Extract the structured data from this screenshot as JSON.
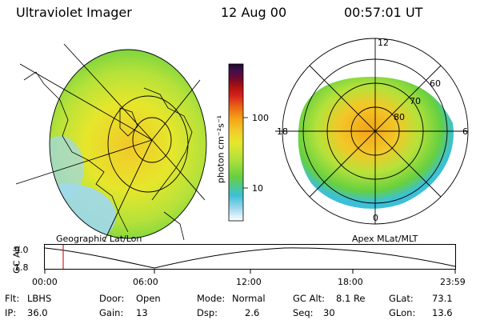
{
  "header": {
    "title": "Ultraviolet Imager",
    "date": "12 Aug 00",
    "time": "00:57:01 UT"
  },
  "colorbar": {
    "unit_label": "photon cm⁻²s⁻¹",
    "tick_100": "100",
    "tick_10": "10",
    "colors": [
      "#ffffff",
      "#9fd8ee",
      "#3cc0d8",
      "#66d040",
      "#b6e23a",
      "#e6e62c",
      "#f2c828",
      "#f4a418",
      "#ec6a14",
      "#d4201c",
      "#a81010",
      "#6c0830",
      "#40104a",
      "#1a0a28"
    ]
  },
  "left_map": {
    "label": "Geographic Lat/Lon"
  },
  "right_map": {
    "label": "Apex MLat/MLT",
    "mlt_labels": {
      "top": "12",
      "left": "18",
      "right": "6",
      "bottom": "0"
    },
    "lat_labels": [
      "60",
      "70",
      "80"
    ]
  },
  "altitude_plot": {
    "axis_label": "GC Alt",
    "y_ticks": [
      "9.0",
      "1.8"
    ],
    "x_ticks": [
      "00:00",
      "06:00",
      "12:00",
      "18:00",
      "23:59"
    ],
    "marker_color": "#d62020"
  },
  "info": {
    "flt_label": "Flt:",
    "flt_value": "LBHS",
    "ip_label": "IP:",
    "ip_value": "36.0",
    "door_label": "Door:",
    "door_value": "Open",
    "gain_label": "Gain:",
    "gain_value": "13",
    "mode_label": "Mode:",
    "mode_value": "Normal",
    "dsp_label": "Dsp:",
    "dsp_value": "2.6",
    "gcalt_label": "GC Alt:",
    "gcalt_value": "8.1 Re",
    "seq_label": "Seq:",
    "seq_value": "30",
    "glat_label": "GLat:",
    "glat_value": "73.1",
    "glon_label": "GLon:",
    "glon_value": "13.6"
  }
}
